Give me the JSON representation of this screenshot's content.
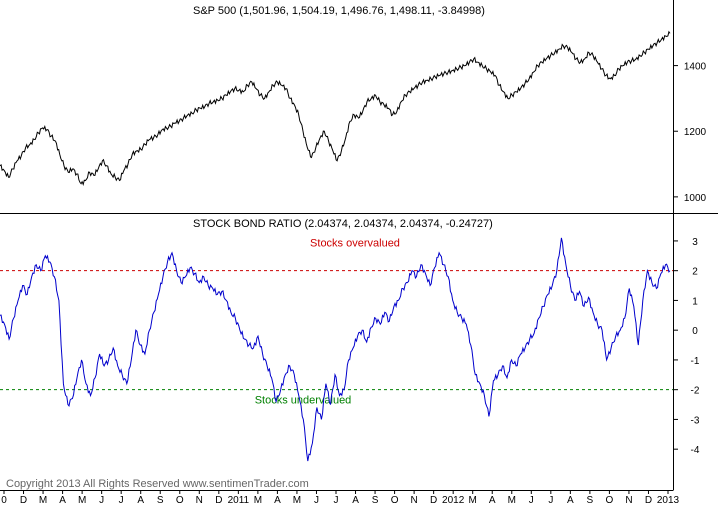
{
  "colors": {
    "background": "#ffffff",
    "price_line": "#000000",
    "ratio_line": "#0000cc",
    "overvalued": "#cc0000",
    "undervalued": "#008000",
    "copyright": "#666666"
  },
  "copyright": "Copyright 2013 All Rights Reserved  www.sentimenTrader.com",
  "chart_data": [
    {
      "type": "line",
      "title": "S&P 500 (1,501.96, 1,504.19, 1,496.76, 1,498.11, -3.84998)",
      "y_ticks": [
        "1400",
        "1200",
        "1000"
      ],
      "y_tick_values": [
        1400,
        1200,
        1000
      ],
      "ylim": [
        960,
        1545
      ],
      "series": [
        {
          "values": [
            1095,
            1080,
            1060,
            1085,
            1110,
            1125,
            1150,
            1160,
            1175,
            1195,
            1210,
            1205,
            1185,
            1170,
            1130,
            1095,
            1075,
            1085,
            1070,
            1040,
            1050,
            1075,
            1065,
            1085,
            1110,
            1095,
            1070,
            1060,
            1050,
            1080,
            1100,
            1130,
            1140,
            1145,
            1160,
            1175,
            1180,
            1190,
            1205,
            1210,
            1215,
            1225,
            1230,
            1240,
            1250,
            1255,
            1265,
            1270,
            1275,
            1285,
            1290,
            1295,
            1300,
            1310,
            1320,
            1330,
            1325,
            1320,
            1340,
            1350,
            1330,
            1310,
            1300,
            1320,
            1340,
            1350,
            1340,
            1330,
            1300,
            1280,
            1250,
            1200,
            1150,
            1120,
            1150,
            1180,
            1200,
            1170,
            1140,
            1110,
            1140,
            1180,
            1230,
            1250,
            1240,
            1260,
            1290,
            1300,
            1310,
            1290,
            1280,
            1270,
            1250,
            1260,
            1290,
            1310,
            1320,
            1330,
            1340,
            1350,
            1355,
            1360,
            1365,
            1370,
            1375,
            1380,
            1385,
            1390,
            1395,
            1400,
            1410,
            1420,
            1410,
            1400,
            1390,
            1380,
            1370,
            1340,
            1320,
            1300,
            1310,
            1320,
            1330,
            1345,
            1360,
            1380,
            1400,
            1410,
            1420,
            1430,
            1440,
            1450,
            1460,
            1455,
            1440,
            1420,
            1410,
            1420,
            1440,
            1430,
            1410,
            1390,
            1370,
            1360,
            1370,
            1390,
            1400,
            1410,
            1415,
            1420,
            1430,
            1440,
            1450,
            1460,
            1470,
            1480,
            1490,
            1498
          ]
        }
      ]
    },
    {
      "type": "line",
      "title": "STOCK BOND RATIO (2.04374, 2.04374, 2.04374, -0.24727)",
      "y_ticks": [
        "3",
        "2",
        "1",
        "0",
        "-1",
        "-2",
        "-3",
        "-4"
      ],
      "y_tick_values": [
        3,
        2,
        1,
        0,
        -1,
        -2,
        -3,
        -4
      ],
      "ylim": [
        -4.7,
        3.3
      ],
      "x_ticks": [
        "0",
        "D",
        "M",
        "A",
        "M",
        "J",
        "J",
        "A",
        "S",
        "O",
        "N",
        "D",
        "2011",
        "M",
        "A",
        "M",
        "J",
        "J",
        "A",
        "S",
        "O",
        "N",
        "D",
        "2012",
        "M",
        "A",
        "M",
        "J",
        "J",
        "A",
        "S",
        "O",
        "N",
        "D",
        "2013"
      ],
      "reference_lines": [
        {
          "y": 2,
          "label": "Stocks overvalued",
          "color": "#cc0000",
          "label_position": "above"
        },
        {
          "y": -2,
          "label": "Stocks undervalued",
          "color": "#008000",
          "label_position": "below"
        }
      ],
      "series": [
        {
          "values": [
            0.5,
            0.2,
            -0.3,
            0.4,
            1.0,
            1.5,
            1.2,
            1.8,
            2.2,
            2.0,
            2.5,
            2.3,
            1.8,
            1.0,
            -1.8,
            -2.5,
            -2.3,
            -1.6,
            -1.0,
            -1.8,
            -2.2,
            -1.6,
            -0.8,
            -1.2,
            -1.0,
            -0.6,
            -1.2,
            -1.5,
            -1.8,
            -1.0,
            0.0,
            -0.5,
            -0.8,
            0.0,
            0.6,
            1.2,
            1.8,
            2.3,
            2.6,
            2.0,
            1.6,
            1.8,
            2.1,
            1.9,
            1.6,
            1.8,
            1.5,
            1.4,
            1.2,
            1.3,
            1.0,
            0.6,
            0.4,
            0.0,
            -0.3,
            -0.5,
            -0.6,
            -0.2,
            -0.8,
            -1.2,
            -1.6,
            -2.4,
            -2.0,
            -1.5,
            -1.2,
            -1.5,
            -2.2,
            -3.0,
            -4.4,
            -3.8,
            -2.6,
            -3.0,
            -1.8,
            -2.5,
            -1.5,
            -2.2,
            -2.0,
            -1.0,
            -0.6,
            -0.2,
            0.0,
            -0.4,
            0.1,
            0.4,
            0.2,
            0.6,
            0.3,
            0.8,
            1.0,
            1.4,
            1.6,
            2.0,
            1.8,
            2.2,
            1.9,
            1.5,
            2.1,
            2.6,
            2.2,
            1.8,
            1.0,
            0.6,
            0.4,
            0.2,
            -0.5,
            -1.5,
            -1.8,
            -2.2,
            -2.9,
            -1.7,
            -1.5,
            -1.2,
            -1.6,
            -1.0,
            -1.2,
            -0.8,
            -0.6,
            -0.3,
            -0.1,
            0.4,
            0.8,
            1.2,
            1.5,
            2.0,
            3.1,
            2.2,
            1.5,
            1.0,
            1.3,
            0.8,
            1.1,
            0.6,
            0.2,
            0.0,
            -1.0,
            -0.6,
            -0.2,
            0.0,
            0.4,
            1.4,
            0.8,
            -0.5,
            1.0,
            2.0,
            1.6,
            1.4,
            1.9,
            2.2,
            2.0
          ]
        }
      ]
    }
  ]
}
